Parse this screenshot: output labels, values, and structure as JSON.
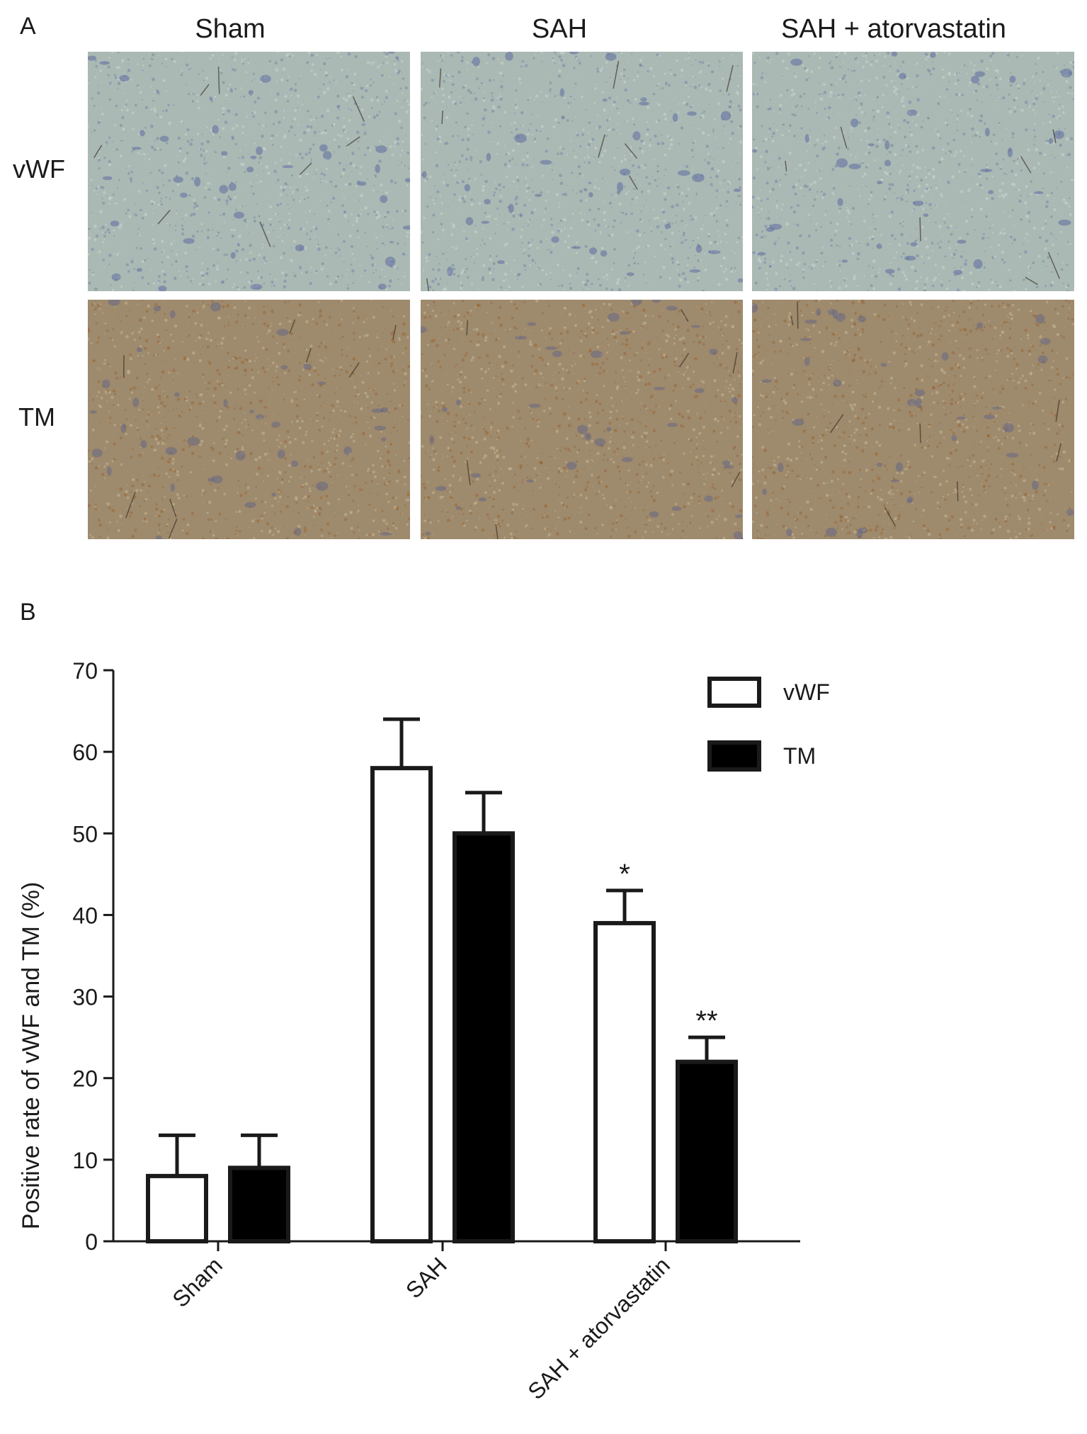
{
  "panel_a": {
    "letter": "A",
    "columns": [
      "Sham",
      "SAH",
      "SAH + atorvastatin"
    ],
    "rows": [
      "vWF",
      "TM"
    ],
    "stain_colors": {
      "vWF": "#aab9b3",
      "TM": "#9e8a6c"
    }
  },
  "panel_b": {
    "letter": "B"
  },
  "chart_data": {
    "type": "bar",
    "categories": [
      "Sham",
      "SAH",
      "SAH + atorvastatin"
    ],
    "series": [
      {
        "name": "vWF",
        "values": [
          8,
          58,
          39
        ],
        "errors": [
          5,
          6,
          4
        ],
        "fill": "#ffffff"
      },
      {
        "name": "TM",
        "values": [
          9,
          50,
          22
        ],
        "errors": [
          4,
          5,
          3
        ],
        "fill": "#000000"
      }
    ],
    "significance": [
      "",
      "",
      "*",
      "",
      "",
      "**"
    ],
    "ylabel": "Positive rate of vWF and TM (%)",
    "xlabel": "",
    "ylim": [
      0,
      70
    ],
    "yticks": [
      0,
      10,
      20,
      30,
      40,
      50,
      60,
      70
    ],
    "legend_position": "top-right",
    "grid": false
  }
}
